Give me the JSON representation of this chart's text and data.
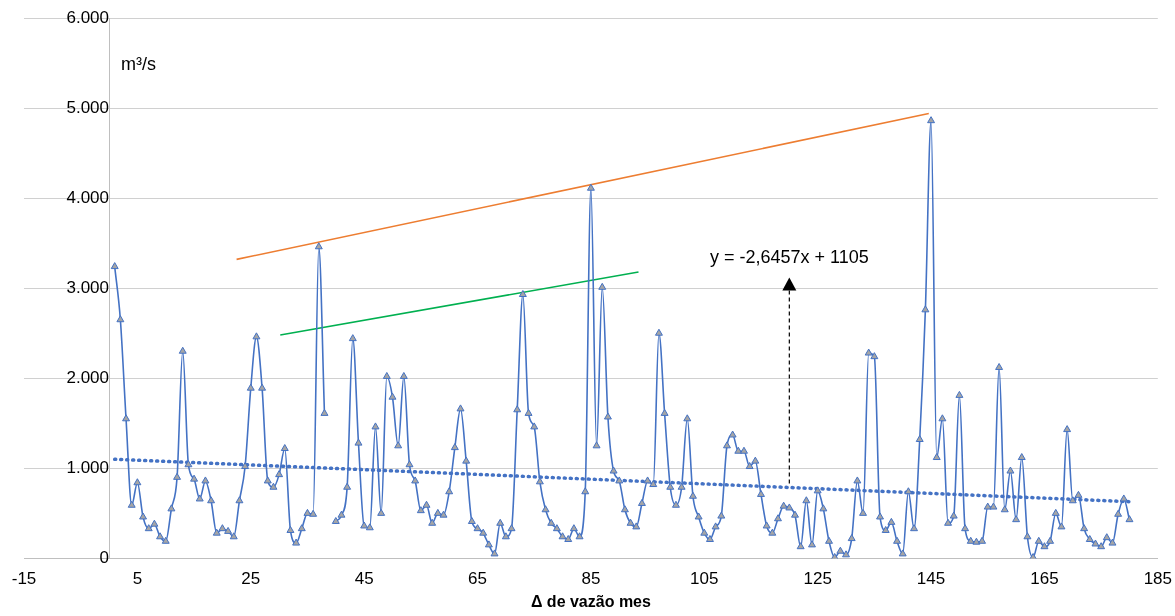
{
  "chart_data": {
    "type": "line",
    "xlabel": "Δ de vazão mes",
    "ylabel": "m³/s",
    "xlim": [
      -15,
      185
    ],
    "xticks": [
      -15,
      5,
      25,
      45,
      65,
      85,
      105,
      125,
      145,
      165,
      185
    ],
    "ylim": [
      0,
      6000
    ],
    "yticks": [
      0,
      {
        "value": 1000,
        "label": "1.000"
      },
      {
        "value": 2000,
        "label": "2.000"
      },
      {
        "value": 3000,
        "label": "3.000"
      },
      {
        "value": 4000,
        "label": "4.000"
      },
      {
        "value": 5000,
        "label": "5.000"
      },
      {
        "value": 6000,
        "label": "6.000"
      }
    ],
    "grid": "y",
    "legend": false,
    "annotations": [
      {
        "text": "y = -2,6457x + 1105",
        "x": 120,
        "y": 788
      }
    ],
    "series": [
      {
        "color": "#4472c4",
        "marker": "triangle",
        "line_style": "solid",
        "x": [
          1,
          2,
          3,
          4,
          5,
          6,
          7,
          8,
          9,
          10,
          11,
          12,
          13,
          14,
          15,
          16,
          17,
          18,
          19,
          20,
          21,
          22,
          23,
          24,
          25,
          26,
          27,
          28,
          29,
          30,
          31,
          32,
          33,
          34,
          35,
          36,
          37,
          38,
          39,
          40,
          41,
          42,
          43,
          44,
          45,
          46,
          47,
          48,
          49,
          50,
          51,
          52,
          53,
          54,
          55,
          56,
          57,
          58,
          59,
          60,
          61,
          62,
          63,
          64,
          65,
          66,
          67,
          68,
          69,
          70,
          71,
          72,
          73,
          74,
          75,
          76,
          77,
          78,
          79,
          80,
          81,
          82,
          83,
          84,
          85,
          86,
          87,
          88,
          89,
          90,
          91,
          92,
          93,
          94,
          95,
          96,
          97,
          98,
          99,
          100,
          101,
          102,
          103,
          104,
          105,
          106,
          107,
          108,
          109,
          110,
          111,
          112,
          113,
          114,
          115,
          116,
          117,
          118,
          119,
          120,
          121,
          122,
          123,
          124,
          125,
          126,
          127,
          128,
          129,
          130,
          131,
          132,
          133,
          134,
          135,
          136,
          137,
          138,
          139,
          140,
          141,
          142,
          143,
          144,
          145,
          146,
          147,
          148,
          149,
          150,
          151,
          152,
          153,
          154,
          155,
          156,
          157,
          158,
          159,
          160,
          161,
          162,
          163,
          164,
          165,
          166,
          167,
          168,
          169,
          170,
          171,
          172,
          173,
          174,
          175,
          176,
          177,
          178,
          179,
          180
        ],
        "values": [
          3240,
          2650,
          1550,
          590,
          840,
          460,
          330,
          380,
          240,
          190,
          550,
          900,
          2300,
          1040,
          880,
          660,
          860,
          640,
          280,
          330,
          300,
          240,
          640,
          1020,
          1890,
          2460,
          1890,
          860,
          790,
          930,
          1220,
          310,
          170,
          330,
          500,
          490,
          3460,
          1610,
          null,
          410,
          480,
          790,
          2440,
          1280,
          360,
          340,
          1460,
          500,
          2020,
          1790,
          1250,
          2020,
          1040,
          860,
          530,
          590,
          390,
          500,
          480,
          740,
          1230,
          1660,
          1080,
          410,
          330,
          280,
          150,
          50,
          390,
          240,
          330,
          1650,
          2930,
          1610,
          1460,
          850,
          540,
          390,
          330,
          240,
          210,
          330,
          240,
          740,
          4110,
          1250,
          3010,
          1570,
          970,
          860,
          540,
          390,
          350,
          610,
          860,
          820,
          2500,
          1610,
          790,
          590,
          790,
          1550,
          690,
          460,
          280,
          210,
          350,
          470,
          1250,
          1370,
          1190,
          1190,
          1020,
          1080,
          710,
          360,
          280,
          440,
          580,
          560,
          480,
          130,
          640,
          150,
          750,
          550,
          190,
          10,
          80,
          40,
          220,
          860,
          500,
          2280,
          2240,
          460,
          310,
          400,
          190,
          50,
          740,
          330,
          1320,
          2760,
          4860,
          1120,
          1550,
          390,
          470,
          1810,
          330,
          190,
          180,
          190,
          570,
          570,
          2120,
          540,
          970,
          430,
          1120,
          240,
          10,
          190,
          130,
          190,
          500,
          350,
          1430,
          640,
          700,
          330,
          210,
          160,
          130,
          230,
          170,
          490,
          660,
          430
        ]
      },
      {
        "color": "#4472c4",
        "marker": "none",
        "line_style": "dotted",
        "x": [
          1,
          180
        ],
        "values": [
          1100,
          630
        ]
      },
      {
        "color": "#ed7d31",
        "marker": "none",
        "line_style": "solid",
        "x": [
          22.5,
          144.6
        ],
        "values": [
          3320,
          4940
        ]
      },
      {
        "color": "#00b050",
        "marker": "none",
        "line_style": "solid",
        "x": [
          30.2,
          93.4
        ],
        "values": [
          2480,
          3180
        ]
      }
    ]
  }
}
